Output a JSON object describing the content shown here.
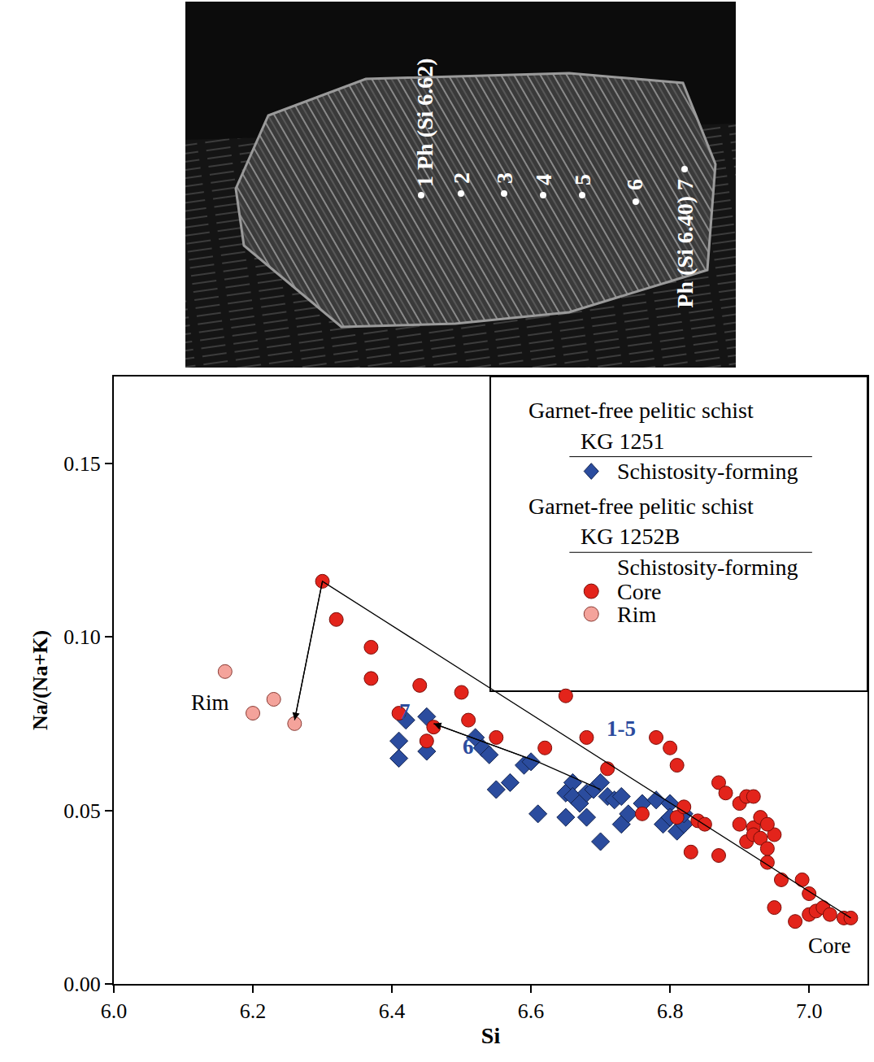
{
  "micrograph": {
    "points": [
      {
        "label": "1 Ph (Si 6.62)"
      },
      {
        "label": "2"
      },
      {
        "label": "3"
      },
      {
        "label": "4"
      },
      {
        "label": "5"
      },
      {
        "label": "6"
      },
      {
        "label": "Ph (Si 6.40) 7"
      }
    ]
  },
  "chart_data": {
    "type": "scatter",
    "x_label": "Si",
    "y_label": "Na/(Na+K)",
    "xlim": [
      6.0,
      7.084
    ],
    "ylim": [
      0,
      0.175
    ],
    "xticks": [
      {
        "value": 6,
        "label": "6.0"
      },
      6.2,
      6.4,
      6.6,
      6.8,
      {
        "value": 7,
        "label": "7.0"
      }
    ],
    "yticks": [
      {
        "value": 0,
        "label": "0.00"
      },
      0.05,
      {
        "value": 0.1,
        "label": "0.10"
      },
      0.15
    ],
    "grid": false,
    "legend": "top right",
    "legend_groups": [
      {
        "title": "Garnet-free pelitic schist",
        "sample": "KG 1251",
        "series": [
          "Schistosity-forming"
        ]
      },
      {
        "title": "Garnet-free pelitic schist",
        "sample": "KG 1252B",
        "heading": "Schistosity-forming",
        "series": [
          "Core",
          "Rim"
        ]
      }
    ],
    "series": [
      {
        "name": "Schistosity-forming",
        "color": "#2b4c9e",
        "marker": "diamond",
        "x": [
          6.41,
          6.41,
          6.42,
          6.45,
          6.45,
          6.52,
          6.53,
          6.54,
          6.55,
          6.57,
          6.59,
          6.6,
          6.61,
          6.65,
          6.65,
          6.66,
          6.66,
          6.67,
          6.68,
          6.68,
          6.69,
          6.7,
          6.7,
          6.71,
          6.72,
          6.73,
          6.73,
          6.74,
          6.76,
          6.78,
          6.79,
          6.8,
          6.8,
          6.81,
          6.82,
          6.82
        ],
        "values": [
          0.065,
          0.07,
          0.076,
          0.077,
          0.067,
          0.071,
          0.068,
          0.066,
          0.056,
          0.058,
          0.063,
          0.064,
          0.049,
          0.048,
          0.055,
          0.058,
          0.054,
          0.052,
          0.048,
          0.055,
          0.056,
          0.058,
          0.041,
          0.054,
          0.053,
          0.046,
          0.054,
          0.049,
          0.052,
          0.053,
          0.046,
          0.052,
          0.048,
          0.044,
          0.046,
          0.049
        ]
      },
      {
        "name": "Core",
        "color": "#e3241b",
        "marker": "circle",
        "x": [
          6.3,
          6.32,
          6.37,
          6.37,
          6.41,
          6.44,
          6.45,
          6.46,
          6.5,
          6.51,
          6.55,
          6.62,
          6.65,
          6.68,
          6.71,
          6.76,
          6.78,
          6.8,
          6.81,
          6.81,
          6.82,
          6.83,
          6.84,
          6.85,
          6.87,
          6.87,
          6.88,
          6.9,
          6.9,
          6.91,
          6.92,
          6.91,
          6.92,
          6.93,
          6.93,
          6.94,
          6.95,
          6.94,
          6.95,
          6.96,
          6.98,
          6.99,
          7.0,
          7.0,
          7.01,
          7.02,
          7.03,
          7.05,
          7.06,
          6.94,
          6.92
        ],
        "values": [
          0.116,
          0.105,
          0.097,
          0.088,
          0.078,
          0.086,
          0.07,
          0.074,
          0.084,
          0.076,
          0.071,
          0.068,
          0.083,
          0.071,
          0.062,
          0.049,
          0.071,
          0.068,
          0.063,
          0.048,
          0.051,
          0.038,
          0.047,
          0.046,
          0.058,
          0.037,
          0.055,
          0.046,
          0.052,
          0.054,
          0.045,
          0.041,
          0.043,
          0.048,
          0.042,
          0.039,
          0.043,
          0.035,
          0.022,
          0.03,
          0.018,
          0.03,
          0.026,
          0.02,
          0.021,
          0.022,
          0.02,
          0.019,
          0.019,
          0.046,
          0.054
        ]
      },
      {
        "name": "Rim",
        "color": "#f4a39b",
        "marker": "circle",
        "x": [
          6.16,
          6.2,
          6.23,
          6.26
        ],
        "values": [
          0.09,
          0.078,
          0.082,
          0.075
        ]
      }
    ],
    "arrows": [
      {
        "color": "#000000",
        "x": [
          7.06,
          6.3,
          6.26
        ],
        "values": [
          0.019,
          0.116,
          0.076
        ]
      },
      {
        "color": "#000000",
        "x": [
          6.7,
          6.61,
          6.46
        ],
        "values": [
          0.056,
          0.064,
          0.075
        ]
      }
    ],
    "annotations": [
      {
        "text": "Rim",
        "x": 6.138,
        "y": 0.081,
        "color": "#000000"
      },
      {
        "text": "Core",
        "x": 7.03,
        "y": 0.011,
        "color": "#000000"
      },
      {
        "text": "7",
        "x": 6.419,
        "y": 0.0785,
        "color": "#2b4c9e"
      },
      {
        "text": "6",
        "x": 6.51,
        "y": 0.0685,
        "color": "#2b4c9e"
      },
      {
        "text": "1-5",
        "x": 6.73,
        "y": 0.0735,
        "color": "#2b4c9e"
      }
    ]
  }
}
